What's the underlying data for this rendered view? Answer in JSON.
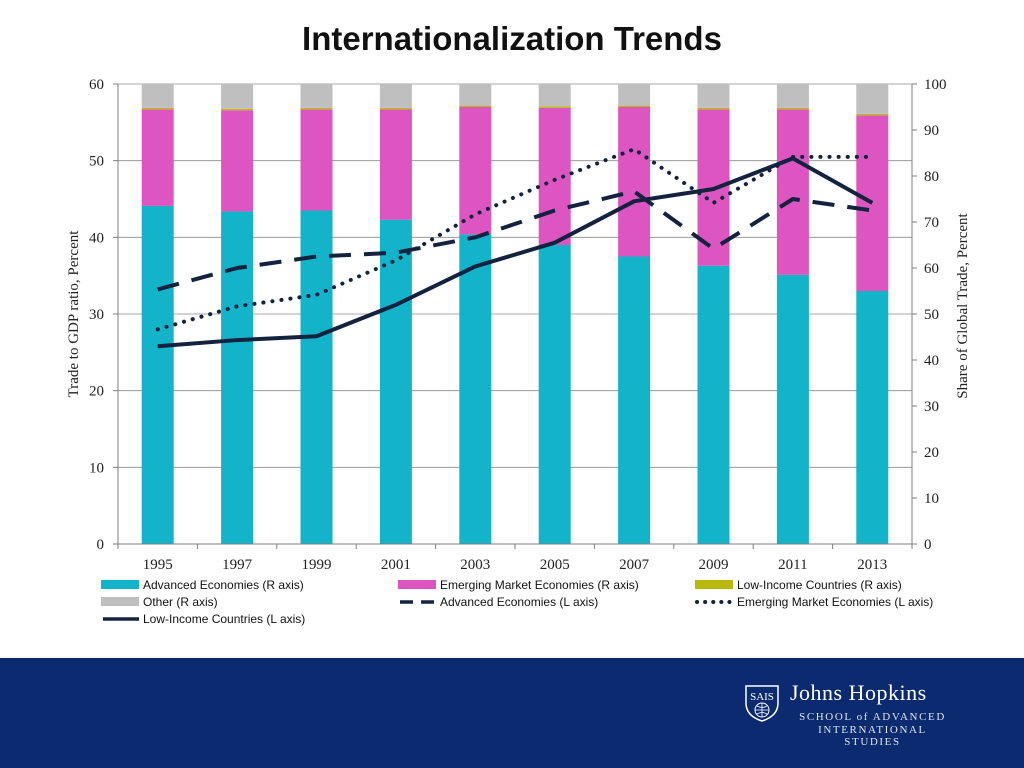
{
  "title": "Internationalization Trends",
  "chart_data": {
    "type": "bar",
    "categories": [
      "1995",
      "1997",
      "1999",
      "2001",
      "2003",
      "2005",
      "2007",
      "2009",
      "2011",
      "2013"
    ],
    "left_axis": {
      "label": "Trade to GDP ratio, Percent",
      "ylim": [
        0,
        60
      ],
      "ticks": [
        0,
        10,
        20,
        30,
        40,
        50,
        60
      ]
    },
    "right_axis": {
      "label": "Share of Global Trade, Percent",
      "ylim": [
        0,
        100
      ],
      "ticks": [
        0,
        10,
        20,
        30,
        40,
        50,
        60,
        70,
        80,
        90,
        100
      ]
    },
    "bar_series": [
      {
        "name": "Advanced Economies (R axis)",
        "axis": "right",
        "color": "#13b3c9",
        "values": [
          73.5,
          72.3,
          72.5,
          70.5,
          67.3,
          65.0,
          62.5,
          60.5,
          58.5,
          55.0
        ]
      },
      {
        "name": "Emerging Market Economies (R axis)",
        "axis": "right",
        "color": "#dd55c0",
        "values": [
          21.0,
          22.0,
          22.0,
          24.0,
          27.7,
          29.8,
          32.5,
          34.0,
          36.0,
          38.2
        ]
      },
      {
        "name": "Low-Income Countries (R axis)",
        "axis": "right",
        "color": "#b8b80e",
        "values": [
          0.3,
          0.3,
          0.3,
          0.3,
          0.3,
          0.3,
          0.3,
          0.3,
          0.3,
          0.3
        ]
      },
      {
        "name": "Other (R axis)",
        "axis": "right",
        "color": "#bfbfbf",
        "values": [
          5.2,
          5.4,
          5.2,
          5.2,
          4.7,
          4.9,
          4.7,
          5.2,
          5.2,
          6.5
        ]
      }
    ],
    "line_series": [
      {
        "name": "Advanced Economies (L axis)",
        "axis": "left",
        "color": "#13233f",
        "style": "dashed",
        "values": [
          33.2,
          36.0,
          37.5,
          38.0,
          40.0,
          43.5,
          46.0,
          38.5,
          45.0,
          43.5
        ]
      },
      {
        "name": "Emerging Market Economies (L axis)",
        "axis": "left",
        "color": "#13233f",
        "style": "dotted",
        "values": [
          28.0,
          31.0,
          32.5,
          37.0,
          43.0,
          47.5,
          51.5,
          44.5,
          50.5,
          50.5
        ]
      },
      {
        "name": "Low-Income Countries (L axis)",
        "axis": "left",
        "color": "#13233f",
        "style": "solid",
        "values": [
          25.8,
          26.6,
          27.1,
          31.2,
          36.2,
          39.3,
          44.7,
          46.3,
          50.3,
          44.5
        ]
      }
    ],
    "grid": "horizontal",
    "legend_position": "bottom"
  },
  "footer": {
    "background": "#0b2a6f",
    "logo_mark": "SAIS",
    "logo_name": "Johns Hopkins",
    "logo_school_line1": "SCHOOL of ADVANCED",
    "logo_school_line2": "INTERNATIONAL STUDIES"
  }
}
